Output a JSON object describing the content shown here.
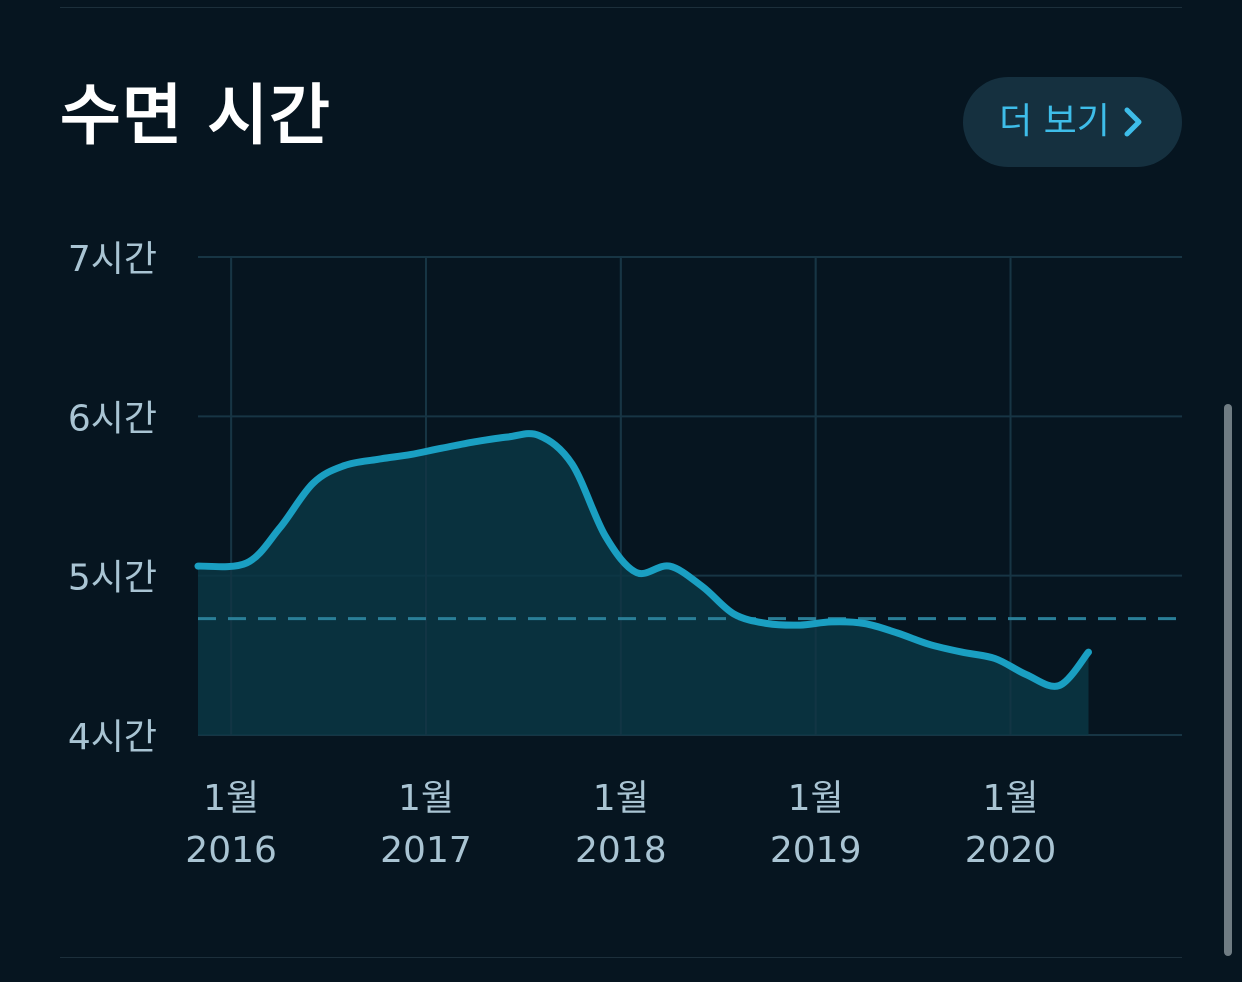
{
  "card": {
    "title": "수면 시간",
    "more_button": {
      "label": "더 보기",
      "icon": "chevron-right-icon"
    }
  },
  "colors": {
    "background": "#061520",
    "line": "#1a9fc2",
    "area": "#0b3644",
    "grid": "#173544",
    "reference_line": "#2a7f98",
    "tick_label": "#a9c4d3",
    "accent": "#3ebde9"
  },
  "chart_data": {
    "type": "area",
    "ylabel": "",
    "xlabel": "",
    "ylim": [
      4,
      7
    ],
    "y_ticks": [
      {
        "value": 7,
        "label": "7시간"
      },
      {
        "value": 6,
        "label": "6시간"
      },
      {
        "value": 5,
        "label": "5시간"
      },
      {
        "value": 4,
        "label": "4시간"
      }
    ],
    "x_ticks": [
      {
        "value": 2016.0,
        "month": "1월",
        "year": "2016"
      },
      {
        "value": 2017.0,
        "month": "1월",
        "year": "2017"
      },
      {
        "value": 2018.0,
        "month": "1월",
        "year": "2018"
      },
      {
        "value": 2019.0,
        "month": "1월",
        "year": "2019"
      },
      {
        "value": 2020.0,
        "month": "1월",
        "year": "2020"
      }
    ],
    "xlim": [
      2015.83,
      2020.88
    ],
    "grid": true,
    "reference_line": {
      "value": 4.73,
      "style": "dashed"
    },
    "series": [
      {
        "x": [
          2015.83,
          2016.08,
          2016.25,
          2016.42,
          2016.58,
          2016.75,
          2016.92,
          2017.08,
          2017.25,
          2017.42,
          2017.58,
          2017.75,
          2017.92,
          2018.08,
          2018.25,
          2018.42,
          2018.58,
          2018.75,
          2018.92,
          2019.08,
          2019.25,
          2019.42,
          2019.58,
          2019.75,
          2019.92,
          2020.08,
          2020.25,
          2020.4
        ],
        "y": [
          5.06,
          5.08,
          5.3,
          5.58,
          5.69,
          5.73,
          5.76,
          5.8,
          5.84,
          5.87,
          5.88,
          5.7,
          5.25,
          5.02,
          5.06,
          4.93,
          4.76,
          4.7,
          4.69,
          4.71,
          4.7,
          4.64,
          4.57,
          4.52,
          4.48,
          4.38,
          4.31,
          4.52
        ]
      }
    ]
  }
}
